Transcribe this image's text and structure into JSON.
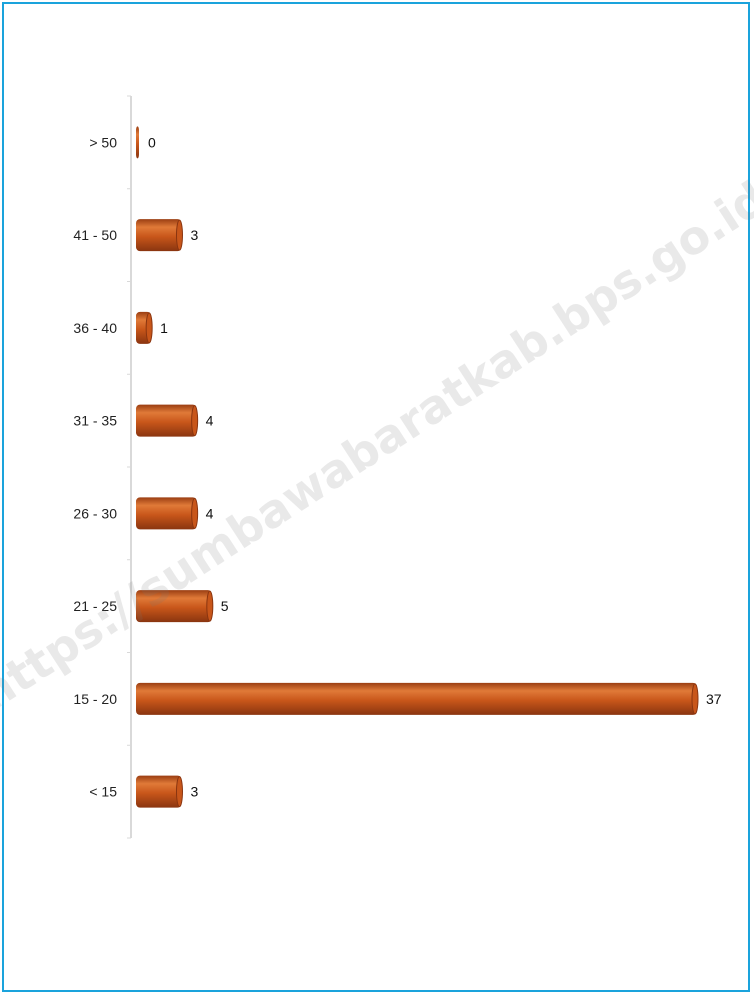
{
  "chart_data": {
    "type": "bar",
    "orientation": "horizontal",
    "categories": [
      "> 50",
      "41 - 50",
      "36 - 40",
      "31 - 35",
      "26 - 30",
      "21 - 25",
      "15 - 20",
      "< 15"
    ],
    "values": [
      0,
      3,
      1,
      4,
      4,
      5,
      37,
      3
    ],
    "value_labels": [
      "0",
      "3",
      "1",
      "4",
      "4",
      "5",
      "37",
      "3"
    ],
    "title": "",
    "xlabel": "",
    "ylabel": "",
    "xlim": [
      0,
      37
    ],
    "grid": false,
    "legend": "none",
    "bar_color": "#c8561a",
    "bar_highlight": "#e88a4a",
    "bar_shadow": "#8a3510"
  },
  "frame_color": "#1aa3dc",
  "watermark": "https://sumbawabaratkab.bps.go.id"
}
